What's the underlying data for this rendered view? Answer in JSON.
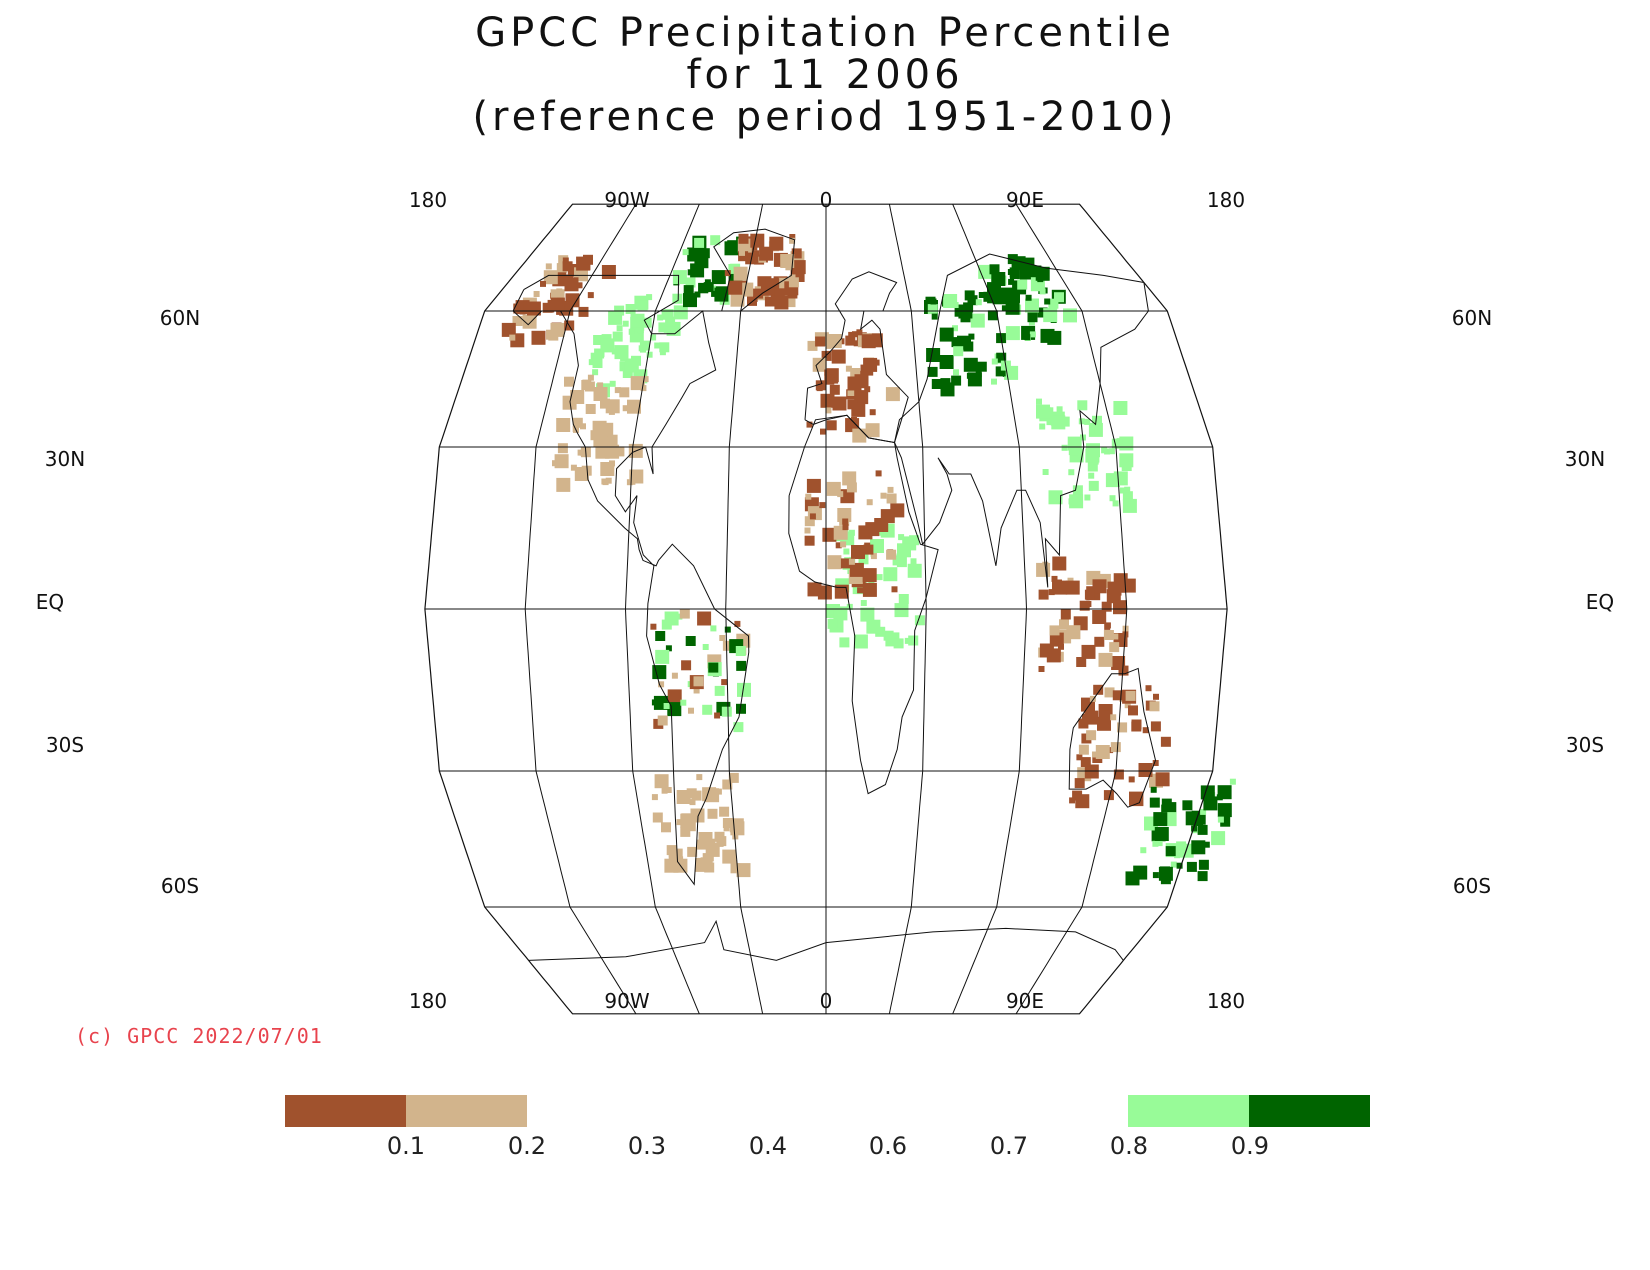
{
  "title": {
    "line1": "GPCC Precipitation Percentile",
    "line2": "for 11 2006",
    "line3": "(reference period 1951-2010)"
  },
  "map": {
    "projection": "Robinson",
    "top_lon_labels": [
      "180",
      "90W",
      "0",
      "90E",
      "180"
    ],
    "bottom_lon_labels": [
      "180",
      "90W",
      "0",
      "90E",
      "180"
    ],
    "left_lat_labels": [
      "60N",
      "30N",
      "EQ",
      "30S",
      "60S"
    ],
    "right_lat_labels": [
      "60N",
      "30N",
      "EQ",
      "30S",
      "60S"
    ],
    "regions": [
      {
        "lon": -150,
        "lat": 65,
        "class": "dry"
      },
      {
        "lon": -100,
        "lat": 55,
        "class": "wet"
      },
      {
        "lon": -110,
        "lat": 35,
        "class": "moderately_dry"
      },
      {
        "lon": -70,
        "lat": 75,
        "class": "very_wet"
      },
      {
        "lon": -40,
        "lat": 75,
        "class": "dry"
      },
      {
        "lon": -60,
        "lat": -10,
        "class": "mixed"
      },
      {
        "lon": -65,
        "lat": -40,
        "class": "moderately_dry"
      },
      {
        "lon": 20,
        "lat": 5,
        "class": "wet"
      },
      {
        "lon": 10,
        "lat": 15,
        "class": "dry"
      },
      {
        "lon": 10,
        "lat": 45,
        "class": "dry"
      },
      {
        "lon": 70,
        "lat": 55,
        "class": "very_wet"
      },
      {
        "lon": 110,
        "lat": 65,
        "class": "very_wet"
      },
      {
        "lon": 120,
        "lat": 30,
        "class": "wet"
      },
      {
        "lon": 115,
        "lat": 0,
        "class": "dry"
      },
      {
        "lon": 135,
        "lat": -25,
        "class": "dry"
      },
      {
        "lon": 172,
        "lat": -42,
        "class": "very_wet"
      }
    ]
  },
  "copyright": "(c) GPCC 2022/07/01",
  "legend": {
    "ticks": [
      "0.1",
      "0.2",
      "0.3",
      "0.4",
      "0.6",
      "0.7",
      "0.8",
      "0.9"
    ],
    "classes": [
      {
        "range": "< 0.1",
        "color": "#a0522d"
      },
      {
        "range": "0.1 - 0.2",
        "color": "#d2b48c"
      },
      {
        "range": "0.2 - 0.8",
        "color": "#ffffff"
      },
      {
        "range": "0.8 - 0.9",
        "color": "#98fb98"
      },
      {
        "range": "> 0.9",
        "color": "#006400"
      }
    ]
  },
  "colors": {
    "very_dry": "#a0522d",
    "dry": "#d2b48c",
    "wet": "#98fb98",
    "very_wet": "#006400",
    "copyright": "#e8434d"
  }
}
